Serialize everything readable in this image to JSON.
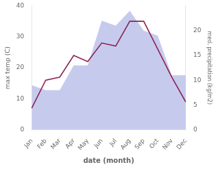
{
  "chart_data": {
    "type": "line",
    "xlabel": "date (month)",
    "ylabel": "max temp (C)",
    "y2label": "med. precipitation (kg/m2)",
    "categories": [
      "Jan",
      "Feb",
      "Mar",
      "Apr",
      "May",
      "Jun",
      "Jul",
      "Aug",
      "Sep",
      "Oct",
      "Nov",
      "Dec"
    ],
    "series": [
      {
        "type": "area",
        "color": "#b3b9e8",
        "axis": "y2",
        "values": [
          9,
          8,
          8,
          13,
          13,
          22,
          21,
          24,
          20,
          19,
          11,
          11
        ]
      },
      {
        "type": "line",
        "color": "#8B2252",
        "values": [
          7,
          16,
          17,
          24,
          22,
          28,
          27,
          35,
          35,
          26,
          17,
          9
        ]
      }
    ],
    "ylim": [
      0,
      40
    ],
    "yticks": [
      0,
      10,
      20,
      30,
      40
    ],
    "y2lim": [
      0,
      25
    ],
    "y2ticks": [
      0,
      5,
      10,
      15,
      20
    ],
    "grid": false
  }
}
